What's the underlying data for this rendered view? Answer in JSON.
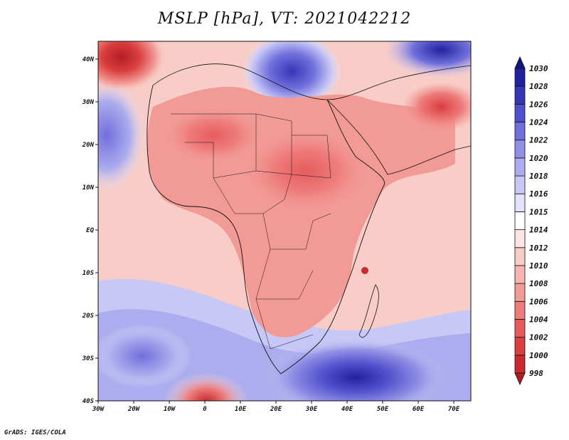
{
  "title": "MSLP [hPa], VT: 2021042212",
  "footer": "GrADS: IGES/COLA",
  "map": {
    "lon_ticks": [
      "30W",
      "20W",
      "10W",
      "0",
      "10E",
      "20E",
      "30E",
      "40E",
      "50E",
      "60E",
      "70E"
    ],
    "lat_ticks": [
      "40S",
      "30S",
      "20S",
      "10S",
      "EQ",
      "10N",
      "20N",
      "30N",
      "40N"
    ],
    "lon_range": [
      -30,
      75
    ],
    "lat_range": [
      -40,
      44
    ]
  },
  "colorbar": {
    "levels": [
      "998",
      "1000",
      "1002",
      "1004",
      "1006",
      "1008",
      "1010",
      "1012",
      "1014",
      "1015",
      "1016",
      "1018",
      "1020",
      "1022",
      "1024",
      "1026",
      "1028",
      "1030"
    ],
    "colors": [
      "#b01e23",
      "#c82a2d",
      "#da3e3e",
      "#e65c5c",
      "#ee7c7c",
      "#f29a96",
      "#f6b4ae",
      "#f9cdc7",
      "#fde6e2",
      "#ffffff",
      "#e2e2fb",
      "#c8c8f6",
      "#acacee",
      "#9090e6",
      "#7070dc",
      "#5050cc",
      "#3636b8",
      "#2222a0",
      "#14147e"
    ]
  }
}
